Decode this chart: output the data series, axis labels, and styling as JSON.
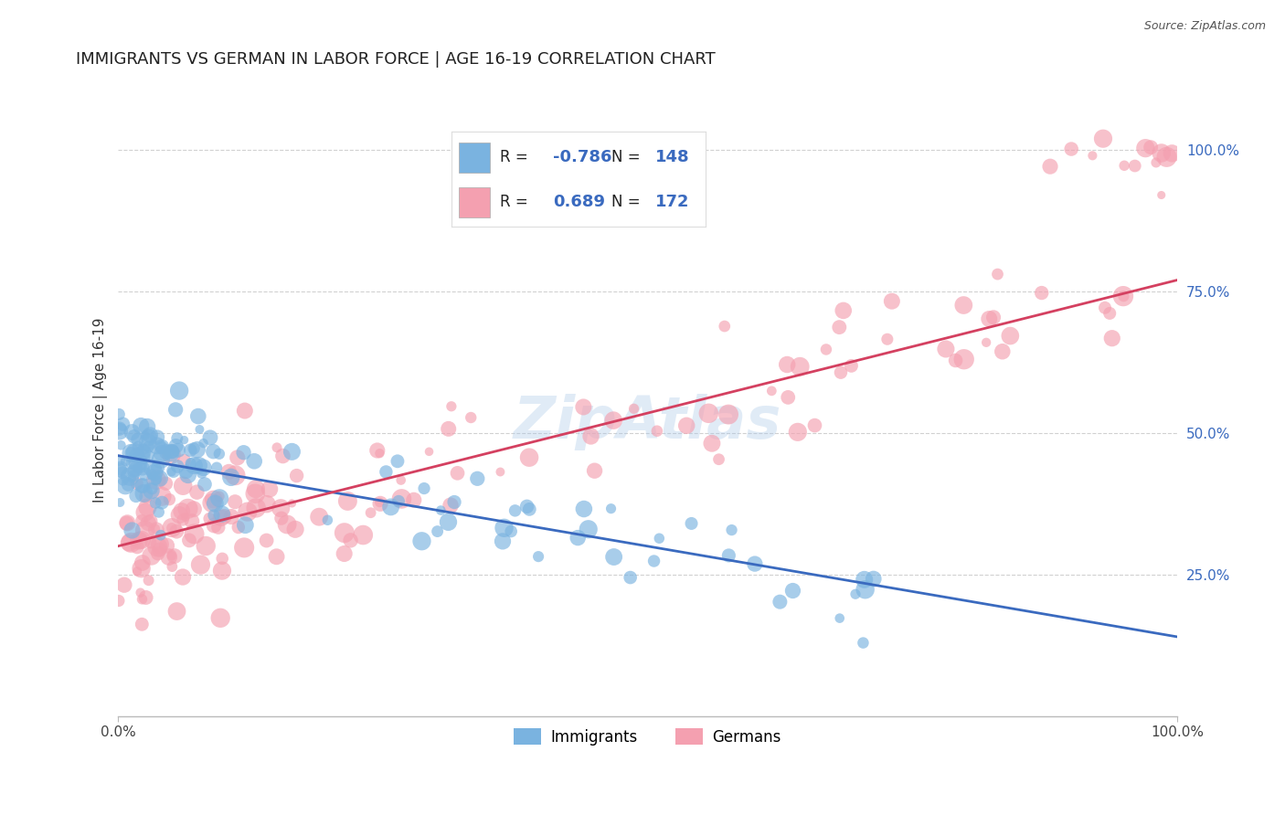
{
  "title": "IMMIGRANTS VS GERMAN IN LABOR FORCE | AGE 16-19 CORRELATION CHART",
  "source": "Source: ZipAtlas.com",
  "ylabel": "In Labor Force | Age 16-19",
  "ytick_labels": [
    "25.0%",
    "50.0%",
    "75.0%",
    "100.0%"
  ],
  "ytick_values": [
    0.25,
    0.5,
    0.75,
    1.0
  ],
  "watermark": "ZipAtlas",
  "blue_color": "#7ab3e0",
  "pink_color": "#f4a0b0",
  "blue_line_color": "#3a6abf",
  "pink_line_color": "#d44060",
  "blue_R": "-0.786",
  "blue_N": "148",
  "pink_R": "0.689",
  "pink_N": "172",
  "legend_blue_label": "Immigrants",
  "legend_pink_label": "Germans",
  "title_fontsize": 13,
  "label_fontsize": 11,
  "tick_fontsize": 11
}
